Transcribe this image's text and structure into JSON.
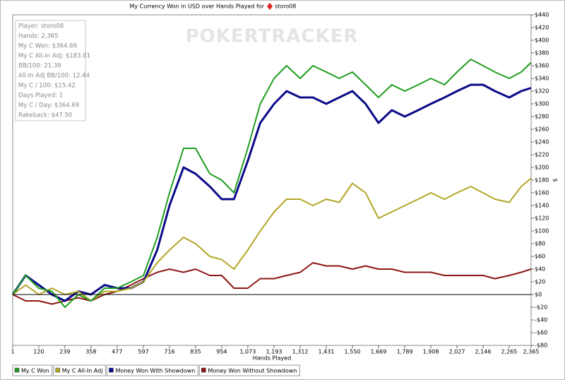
{
  "chart_data": {
    "type": "line",
    "title": "My Currency Won in USD over Hands Played for",
    "player": "storo08",
    "watermark": "POKERTRACKER",
    "xlabel": "Hands Played",
    "ylabel": "$",
    "grid": false,
    "legend": "bottom",
    "stats_box": [
      "Player: storo08",
      "Hands: 2,365",
      "My C Won: $364.69",
      "My C All-In Adj: $183.01",
      "BB/100: 21.39",
      "All-In Adj BB/100: 12.44",
      "My C / 100: $15.42",
      "Days Played: 1",
      "My C / Day: $364.69",
      "Rakeback: $47.50"
    ],
    "xlim": [
      1,
      2365
    ],
    "xticks": [
      1,
      120,
      239,
      358,
      477,
      597,
      716,
      835,
      954,
      {
        "value": 1073,
        "label": "1,073"
      },
      {
        "value": 1193,
        "label": "1,193"
      },
      {
        "value": 1312,
        "label": "1,312"
      },
      {
        "value": 1431,
        "label": "1,431"
      },
      {
        "value": 1550,
        "label": "1,550"
      },
      {
        "value": 1669,
        "label": "1,669"
      },
      {
        "value": 1789,
        "label": "1,789"
      },
      {
        "value": 1908,
        "label": "1,908"
      },
      {
        "value": 2027,
        "label": "2,027"
      },
      {
        "value": 2146,
        "label": "2,146"
      },
      {
        "value": 2265,
        "label": "2,265"
      },
      {
        "value": 2365,
        "label": "2,365"
      }
    ],
    "ylim": [
      -80,
      440
    ],
    "yticks": [
      {
        "value": 440,
        "label": "$440"
      },
      {
        "value": 420,
        "label": "$420"
      },
      {
        "value": 400,
        "label": "$400"
      },
      {
        "value": 380,
        "label": "$380"
      },
      {
        "value": 360,
        "label": "$360"
      },
      {
        "value": 340,
        "label": "$340"
      },
      {
        "value": 320,
        "label": "$320"
      },
      {
        "value": 300,
        "label": "$300"
      },
      {
        "value": 280,
        "label": "$280"
      },
      {
        "value": 260,
        "label": "$260"
      },
      {
        "value": 240,
        "label": "$240"
      },
      {
        "value": 220,
        "label": "$220"
      },
      {
        "value": 200,
        "label": "$200"
      },
      {
        "value": 180,
        "label": "$180"
      },
      {
        "value": 160,
        "label": "$160"
      },
      {
        "value": 140,
        "label": "$140"
      },
      {
        "value": 120,
        "label": "$120"
      },
      {
        "value": 100,
        "label": "$100"
      },
      {
        "value": 80,
        "label": "$80"
      },
      {
        "value": 60,
        "label": "$60"
      },
      {
        "value": 40,
        "label": "$40"
      },
      {
        "value": 20,
        "label": "$20"
      },
      {
        "value": 0,
        "label": "$0"
      },
      {
        "value": -20,
        "label": "-$20"
      },
      {
        "value": -40,
        "label": "-$40"
      },
      {
        "value": -60,
        "label": "-$60"
      },
      {
        "value": -80,
        "label": "-$80"
      }
    ],
    "x": [
      1,
      60,
      120,
      180,
      239,
      300,
      358,
      420,
      477,
      540,
      597,
      660,
      716,
      780,
      835,
      900,
      954,
      1010,
      1073,
      1130,
      1193,
      1250,
      1312,
      1370,
      1431,
      1490,
      1550,
      1610,
      1669,
      1730,
      1789,
      1850,
      1908,
      1970,
      2027,
      2090,
      2146,
      2200,
      2265,
      2320,
      2365
    ],
    "series": [
      {
        "name": "My C Won",
        "color": "#1f9e1f",
        "values": [
          0,
          30,
          10,
          5,
          -20,
          0,
          -10,
          10,
          10,
          20,
          30,
          90,
          160,
          230,
          230,
          190,
          180,
          160,
          230,
          300,
          340,
          360,
          340,
          360,
          350,
          340,
          350,
          330,
          310,
          330,
          320,
          330,
          340,
          330,
          350,
          370,
          360,
          350,
          340,
          350,
          365
        ]
      },
      {
        "name": "My C All-In Adj",
        "color": "#b3a626",
        "values": [
          0,
          15,
          0,
          10,
          0,
          5,
          -10,
          5,
          5,
          10,
          20,
          50,
          70,
          90,
          80,
          60,
          55,
          40,
          70,
          100,
          130,
          150,
          150,
          140,
          150,
          145,
          175,
          160,
          120,
          130,
          140,
          150,
          160,
          150,
          160,
          170,
          160,
          150,
          145,
          170,
          183
        ]
      },
      {
        "name": "Money Won With Showdown",
        "color": "#0b0b8a",
        "values": [
          0,
          30,
          15,
          0,
          -10,
          5,
          0,
          15,
          10,
          10,
          20,
          70,
          140,
          200,
          190,
          170,
          150,
          150,
          210,
          270,
          300,
          320,
          310,
          310,
          300,
          310,
          320,
          300,
          270,
          290,
          280,
          290,
          300,
          310,
          320,
          330,
          330,
          320,
          310,
          320,
          325
        ]
      },
      {
        "name": "Money Won Without Showdown",
        "color": "#8c1616",
        "values": [
          0,
          -10,
          -10,
          -15,
          -10,
          -5,
          -10,
          0,
          5,
          15,
          25,
          35,
          40,
          35,
          40,
          30,
          30,
          10,
          10,
          25,
          25,
          30,
          35,
          50,
          45,
          45,
          40,
          45,
          40,
          40,
          35,
          35,
          35,
          30,
          30,
          30,
          30,
          25,
          30,
          35,
          40
        ]
      }
    ]
  }
}
